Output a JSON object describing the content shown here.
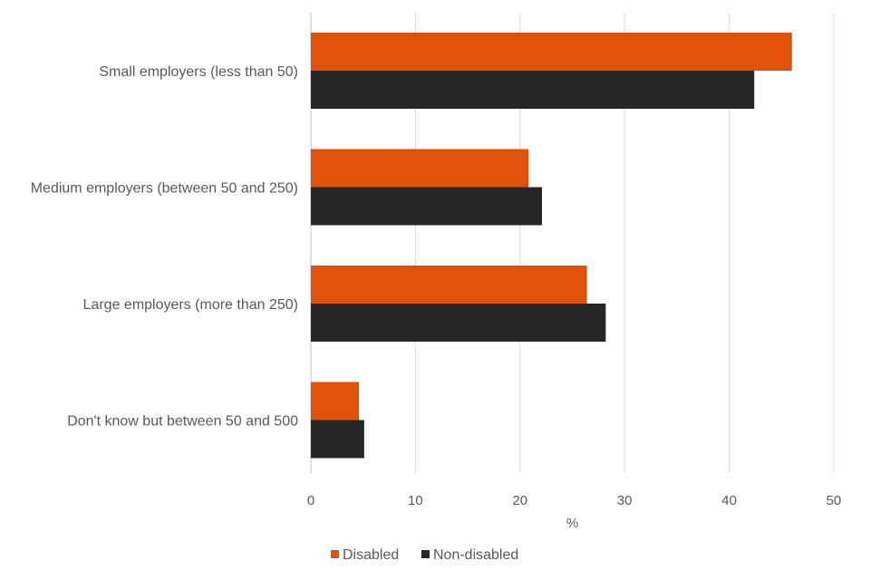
{
  "chart_data": {
    "type": "bar",
    "orientation": "horizontal",
    "title": "",
    "xlabel": "%",
    "ylabel": "",
    "xlim": [
      0,
      50
    ],
    "x_ticks": [
      0,
      10,
      20,
      30,
      40,
      50
    ],
    "grid": true,
    "legend_position": "bottom",
    "categories": [
      "Small employers (less than 50)",
      "Medium employers (between 50 and 250)",
      "Large employers (more than 250)",
      "Don't know but between 50 and 500"
    ],
    "series": [
      {
        "name": "Disabled",
        "color": "#e0520a",
        "values": [
          46,
          20.8,
          26.4,
          4.6
        ]
      },
      {
        "name": "Non-disabled",
        "color": "#262626",
        "values": [
          42.4,
          22.1,
          28.2,
          5.1
        ]
      }
    ]
  }
}
